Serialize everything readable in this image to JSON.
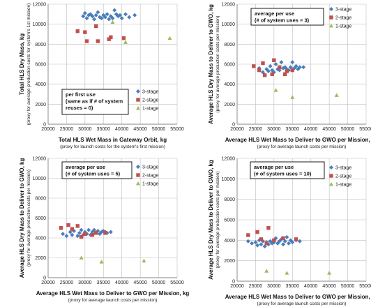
{
  "colors": {
    "3-stage": "#4a7ebb",
    "2-stage": "#c0504d",
    "1-stage": "#9bbb59",
    "grid": "#bfbfbf",
    "axis": "#868686"
  },
  "chart_data": [
    {
      "type": "scatter",
      "note": [
        "per first use",
        "(same as if # of system",
        "reuses = 0)"
      ],
      "xlabel": "Total HLS Wet Mass in Gateway Orbit, kg",
      "xlabel_sub": "(proxy for launch costs for the system's first mission)",
      "ylabel": "Total HLS Dry Mass, kg",
      "ylabel_sub": "(proxy for average production costs for system's 1st mission)",
      "xlim": [
        20000,
        55000
      ],
      "ylim": [
        0,
        12000
      ],
      "grid": true,
      "xticks": [
        "20000",
        "25000",
        "30000",
        "35000",
        "40000",
        "45000",
        "50000",
        "55000"
      ],
      "yticks": [
        "0",
        "2000",
        "4000",
        "6000",
        "8000",
        "10000",
        "12000"
      ],
      "legend": [
        "3-stage",
        "2-stage",
        "1-stage"
      ],
      "series": [
        {
          "name": "3-stage",
          "points": [
            [
              29500,
              10800
            ],
            [
              30000,
              11100
            ],
            [
              30500,
              10600
            ],
            [
              31000,
              10900
            ],
            [
              31500,
              11000
            ],
            [
              32000,
              10800
            ],
            [
              32500,
              10500
            ],
            [
              33000,
              10900
            ],
            [
              33500,
              11200
            ],
            [
              34000,
              10700
            ],
            [
              34500,
              10600
            ],
            [
              35000,
              10900
            ],
            [
              35500,
              10700
            ],
            [
              36000,
              11000
            ],
            [
              36500,
              10500
            ],
            [
              37000,
              10800
            ],
            [
              37500,
              10600
            ],
            [
              38000,
              11400
            ],
            [
              38500,
              11000
            ],
            [
              39000,
              10800
            ],
            [
              39500,
              10900
            ],
            [
              40000,
              10600
            ],
            [
              41000,
              11000
            ],
            [
              42000,
              10700
            ],
            [
              43500,
              10900
            ]
          ]
        },
        {
          "name": "2-stage",
          "points": [
            [
              28000,
              9300
            ],
            [
              30000,
              9200
            ],
            [
              30500,
              8300
            ],
            [
              33000,
              9800
            ],
            [
              33500,
              8300
            ],
            [
              36500,
              8500
            ],
            [
              37000,
              8700
            ],
            [
              40500,
              8600
            ]
          ]
        },
        {
          "name": "1-stage",
          "points": [
            [
              37500,
              10200
            ],
            [
              41000,
              8200
            ],
            [
              53000,
              8600
            ]
          ]
        }
      ]
    },
    {
      "type": "scatter",
      "note": [
        "average per use",
        "(# of system uses = 3)"
      ],
      "xlabel": "Average HLS Wet Mass to Deliver to GWO per Mission, kg",
      "xlabel_sub": "(proxy for average launch costs per mission)",
      "ylabel": "Average HLS Dry Mass to Deliver to GWO, kg",
      "ylabel_sub": "(proxy for average production costs per mission)",
      "xlim": [
        20000,
        55000
      ],
      "ylim": [
        0,
        12000
      ],
      "grid": true,
      "xticks": [
        "20000",
        "25000",
        "30000",
        "35000",
        "40000",
        "45000",
        "50000",
        "55000"
      ],
      "yticks": [
        "0",
        "2000",
        "4000",
        "6000",
        "8000",
        "10000",
        "12000"
      ],
      "legend": [
        "3-stage",
        "2-stage",
        "1-stage"
      ],
      "series": [
        {
          "name": "3-stage",
          "points": [
            [
              26000,
              5600
            ],
            [
              27000,
              5200
            ],
            [
              28000,
              5500
            ],
            [
              28500,
              5300
            ],
            [
              29000,
              5800
            ],
            [
              29500,
              5400
            ],
            [
              30000,
              5200
            ],
            [
              30500,
              6000
            ],
            [
              31000,
              5500
            ],
            [
              31500,
              5400
            ],
            [
              32000,
              6200
            ],
            [
              32500,
              5600
            ],
            [
              33000,
              5700
            ],
            [
              33500,
              5500
            ],
            [
              34000,
              5400
            ],
            [
              34500,
              5700
            ],
            [
              35000,
              6200
            ],
            [
              35500,
              5600
            ],
            [
              36000,
              5800
            ],
            [
              36500,
              5500
            ],
            [
              37000,
              5700
            ],
            [
              38000,
              5700
            ]
          ]
        },
        {
          "name": "2-stage",
          "points": [
            [
              24500,
              5800
            ],
            [
              26000,
              5400
            ],
            [
              27000,
              6100
            ],
            [
              27500,
              4900
            ],
            [
              29500,
              5000
            ],
            [
              30000,
              6400
            ],
            [
              31500,
              5700
            ],
            [
              33000,
              5000
            ],
            [
              33500,
              5300
            ],
            [
              35000,
              5400
            ]
          ]
        },
        {
          "name": "1-stage",
          "points": [
            [
              30500,
              3400
            ],
            [
              35000,
              2700
            ],
            [
              47000,
              2900
            ]
          ]
        }
      ]
    },
    {
      "type": "scatter",
      "note": [
        "average per use",
        "(# of system uses = 5)"
      ],
      "xlabel": "Average HLS Wet Mass to Deliver to GWO per Mission, kg",
      "xlabel_sub": "(proxy for average launch costs per mission)",
      "ylabel": "Average HLS Dry Mass to Deliver to GWO, kg",
      "ylabel_sub": "(proxy for average production costs per mission)",
      "xlim": [
        20000,
        55000
      ],
      "ylim": [
        0,
        12000
      ],
      "grid": true,
      "xticks": [
        "20000",
        "25000",
        "30000",
        "35000",
        "40000",
        "45000",
        "50000",
        "55000"
      ],
      "yticks": [
        "0",
        "2000",
        "4000",
        "6000",
        "8000",
        "10000",
        "12000"
      ],
      "legend": [
        "3-stage",
        "2-stage",
        "1-stage"
      ],
      "series": [
        {
          "name": "3-stage",
          "points": [
            [
              24000,
              4400
            ],
            [
              25000,
              4200
            ],
            [
              26000,
              4600
            ],
            [
              26500,
              4300
            ],
            [
              27000,
              4700
            ],
            [
              28000,
              4200
            ],
            [
              28500,
              4500
            ],
            [
              29000,
              4800
            ],
            [
              29500,
              4300
            ],
            [
              30000,
              4600
            ],
            [
              30500,
              4400
            ],
            [
              31000,
              4800
            ],
            [
              31500,
              4300
            ],
            [
              32000,
              4600
            ],
            [
              32500,
              4800
            ],
            [
              33000,
              4500
            ],
            [
              33500,
              4700
            ],
            [
              34000,
              4400
            ],
            [
              34500,
              4600
            ],
            [
              35000,
              4700
            ],
            [
              35500,
              4600
            ],
            [
              36000,
              4500
            ],
            [
              37000,
              4600
            ]
          ]
        },
        {
          "name": "2-stage",
          "points": [
            [
              23500,
              5000
            ],
            [
              25500,
              5300
            ],
            [
              26500,
              4900
            ],
            [
              28000,
              5200
            ],
            [
              29000,
              4100
            ],
            [
              30000,
              4400
            ],
            [
              32000,
              4300
            ],
            [
              33000,
              4500
            ],
            [
              35500,
              4500
            ]
          ]
        },
        {
          "name": "1-stage",
          "points": [
            [
              29000,
              2000
            ],
            [
              34500,
              1600
            ],
            [
              46000,
              1700
            ]
          ]
        }
      ]
    },
    {
      "type": "scatter",
      "note": [
        "average per use",
        "(# of system uses = 10)"
      ],
      "xlabel": "Average HLS Wet Mass to Deliver to GWO per Mission, kg",
      "xlabel_sub": "(proxy for average launch costs per mission)",
      "ylabel": "Average HLS Dry Mass to Deliver to GWO, kg",
      "ylabel_sub": "(proxy for average production costs per mission)",
      "xlim": [
        20000,
        55000
      ],
      "ylim": [
        0,
        12000
      ],
      "grid": true,
      "xticks": [
        "20000",
        "25000",
        "30000",
        "35000",
        "40000",
        "45000",
        "50000",
        "55000"
      ],
      "yticks": [
        "0",
        "2000",
        "4000",
        "6000",
        "8000",
        "10000",
        "12000"
      ],
      "legend": [
        "3-stage",
        "2-stage",
        "1-stage"
      ],
      "series": [
        {
          "name": "3-stage",
          "points": [
            [
              23000,
              3900
            ],
            [
              24000,
              3700
            ],
            [
              25000,
              3800
            ],
            [
              25500,
              3500
            ],
            [
              26000,
              4000
            ],
            [
              26500,
              3600
            ],
            [
              27000,
              3900
            ],
            [
              27500,
              3400
            ],
            [
              28000,
              3800
            ],
            [
              28500,
              3600
            ],
            [
              29000,
              3900
            ],
            [
              29500,
              3700
            ],
            [
              30000,
              3800
            ],
            [
              30500,
              4200
            ],
            [
              31000,
              3700
            ],
            [
              31500,
              3900
            ],
            [
              32000,
              4100
            ],
            [
              32500,
              3600
            ],
            [
              33000,
              3900
            ],
            [
              33500,
              4300
            ],
            [
              34000,
              3700
            ],
            [
              34500,
              4000
            ],
            [
              35000,
              3800
            ],
            [
              36000,
              4000
            ],
            [
              37000,
              3900
            ]
          ]
        },
        {
          "name": "2-stage",
          "points": [
            [
              23000,
              4500
            ],
            [
              25500,
              4800
            ],
            [
              26500,
              4100
            ],
            [
              28000,
              3700
            ],
            [
              28500,
              5200
            ],
            [
              30000,
              4000
            ],
            [
              32500,
              4200
            ],
            [
              36000,
              4100
            ]
          ]
        },
        {
          "name": "1-stage",
          "points": [
            [
              28000,
              1000
            ],
            [
              33500,
              800
            ],
            [
              45000,
              800
            ]
          ]
        }
      ]
    }
  ]
}
